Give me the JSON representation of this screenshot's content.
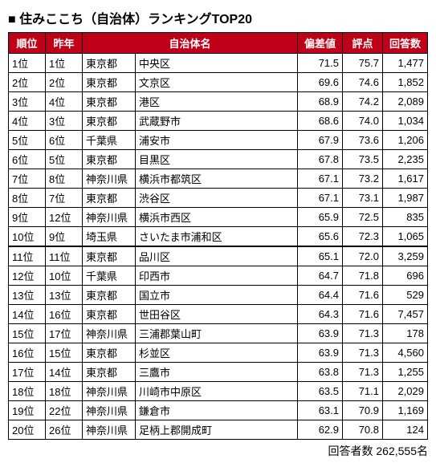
{
  "title": "■ 住みここち（自治体）ランキングTOP20",
  "headers": {
    "rank": "順位",
    "last": "昨年",
    "muni": "自治体名",
    "dev": "偏差値",
    "score": "評点",
    "resp": "回答数"
  },
  "rows": [
    {
      "rank": "1位",
      "last": "1位",
      "pref": "東京都",
      "muni": "中央区",
      "dev": "71.5",
      "score": "75.7",
      "resp": "1,477"
    },
    {
      "rank": "2位",
      "last": "2位",
      "pref": "東京都",
      "muni": "文京区",
      "dev": "69.6",
      "score": "74.6",
      "resp": "1,852"
    },
    {
      "rank": "3位",
      "last": "4位",
      "pref": "東京都",
      "muni": "港区",
      "dev": "68.9",
      "score": "74.2",
      "resp": "2,089"
    },
    {
      "rank": "4位",
      "last": "3位",
      "pref": "東京都",
      "muni": "武蔵野市",
      "dev": "68.6",
      "score": "74.0",
      "resp": "1,034"
    },
    {
      "rank": "5位",
      "last": "6位",
      "pref": "千葉県",
      "muni": "浦安市",
      "dev": "67.9",
      "score": "73.6",
      "resp": "1,206"
    },
    {
      "rank": "6位",
      "last": "5位",
      "pref": "東京都",
      "muni": "目黒区",
      "dev": "67.8",
      "score": "73.5",
      "resp": "2,235"
    },
    {
      "rank": "7位",
      "last": "8位",
      "pref": "神奈川県",
      "muni": "横浜市都筑区",
      "dev": "67.1",
      "score": "73.2",
      "resp": "1,617"
    },
    {
      "rank": "8位",
      "last": "7位",
      "pref": "東京都",
      "muni": "渋谷区",
      "dev": "67.1",
      "score": "73.1",
      "resp": "1,987"
    },
    {
      "rank": "9位",
      "last": "12位",
      "pref": "神奈川県",
      "muni": "横浜市西区",
      "dev": "65.9",
      "score": "72.5",
      "resp": "835"
    },
    {
      "rank": "10位",
      "last": "9位",
      "pref": "埼玉県",
      "muni": "さいたま市浦和区",
      "dev": "65.6",
      "score": "72.3",
      "resp": "1,065"
    },
    {
      "rank": "11位",
      "last": "11位",
      "pref": "東京都",
      "muni": "品川区",
      "dev": "65.1",
      "score": "72.0",
      "resp": "3,259"
    },
    {
      "rank": "12位",
      "last": "10位",
      "pref": "千葉県",
      "muni": "印西市",
      "dev": "64.7",
      "score": "71.8",
      "resp": "696"
    },
    {
      "rank": "13位",
      "last": "13位",
      "pref": "東京都",
      "muni": "国立市",
      "dev": "64.4",
      "score": "71.6",
      "resp": "529"
    },
    {
      "rank": "14位",
      "last": "16位",
      "pref": "東京都",
      "muni": "世田谷区",
      "dev": "64.3",
      "score": "71.6",
      "resp": "7,457"
    },
    {
      "rank": "15位",
      "last": "17位",
      "pref": "神奈川県",
      "muni": "三浦郡葉山町",
      "dev": "63.9",
      "score": "71.3",
      "resp": "178"
    },
    {
      "rank": "16位",
      "last": "15位",
      "pref": "東京都",
      "muni": "杉並区",
      "dev": "63.9",
      "score": "71.3",
      "resp": "4,560"
    },
    {
      "rank": "17位",
      "last": "14位",
      "pref": "東京都",
      "muni": "三鷹市",
      "dev": "63.8",
      "score": "71.3",
      "resp": "1,255"
    },
    {
      "rank": "18位",
      "last": "18位",
      "pref": "神奈川県",
      "muni": "川崎市中原区",
      "dev": "63.5",
      "score": "71.1",
      "resp": "2,029"
    },
    {
      "rank": "19位",
      "last": "22位",
      "pref": "神奈川県",
      "muni": "鎌倉市",
      "dev": "63.1",
      "score": "70.9",
      "resp": "1,169"
    },
    {
      "rank": "20位",
      "last": "26位",
      "pref": "神奈川県",
      "muni": "足柄上郡開成町",
      "dev": "62.9",
      "score": "70.8",
      "resp": "124"
    }
  ],
  "footer": "回答者数 262,555名",
  "separator_after_index": 9
}
